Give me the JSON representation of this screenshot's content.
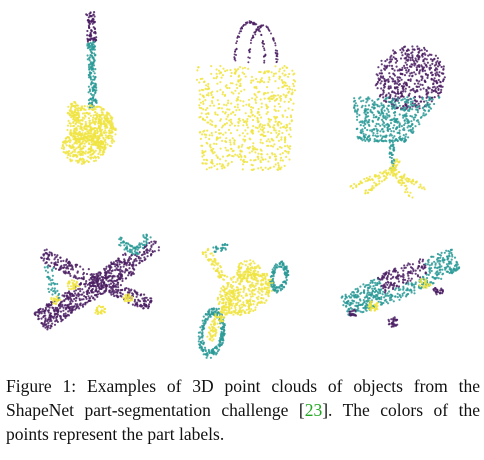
{
  "colors": {
    "yellow": "#f0e442",
    "teal": "#2a9a96",
    "purple": "#4b1f63",
    "citation": "#21a821",
    "text": "#111111"
  },
  "figure": {
    "objects": [
      {
        "name": "guitar",
        "parts": [
          "yellow",
          "teal",
          "purple"
        ]
      },
      {
        "name": "bag",
        "parts": [
          "yellow",
          "purple"
        ]
      },
      {
        "name": "chair",
        "parts": [
          "purple",
          "teal",
          "yellow"
        ]
      },
      {
        "name": "airplane",
        "parts": [
          "purple",
          "teal",
          "yellow"
        ]
      },
      {
        "name": "motorbike",
        "parts": [
          "yellow",
          "teal"
        ]
      },
      {
        "name": "skateboard",
        "parts": [
          "teal",
          "purple",
          "yellow"
        ]
      }
    ]
  },
  "caption": {
    "before_cite": "Figure 1: Examples of 3D point clouds of objects from the ShapeNet part-segmentation challenge [",
    "cite": "23",
    "after_cite": "]. The colors of the points represent the part labels."
  }
}
